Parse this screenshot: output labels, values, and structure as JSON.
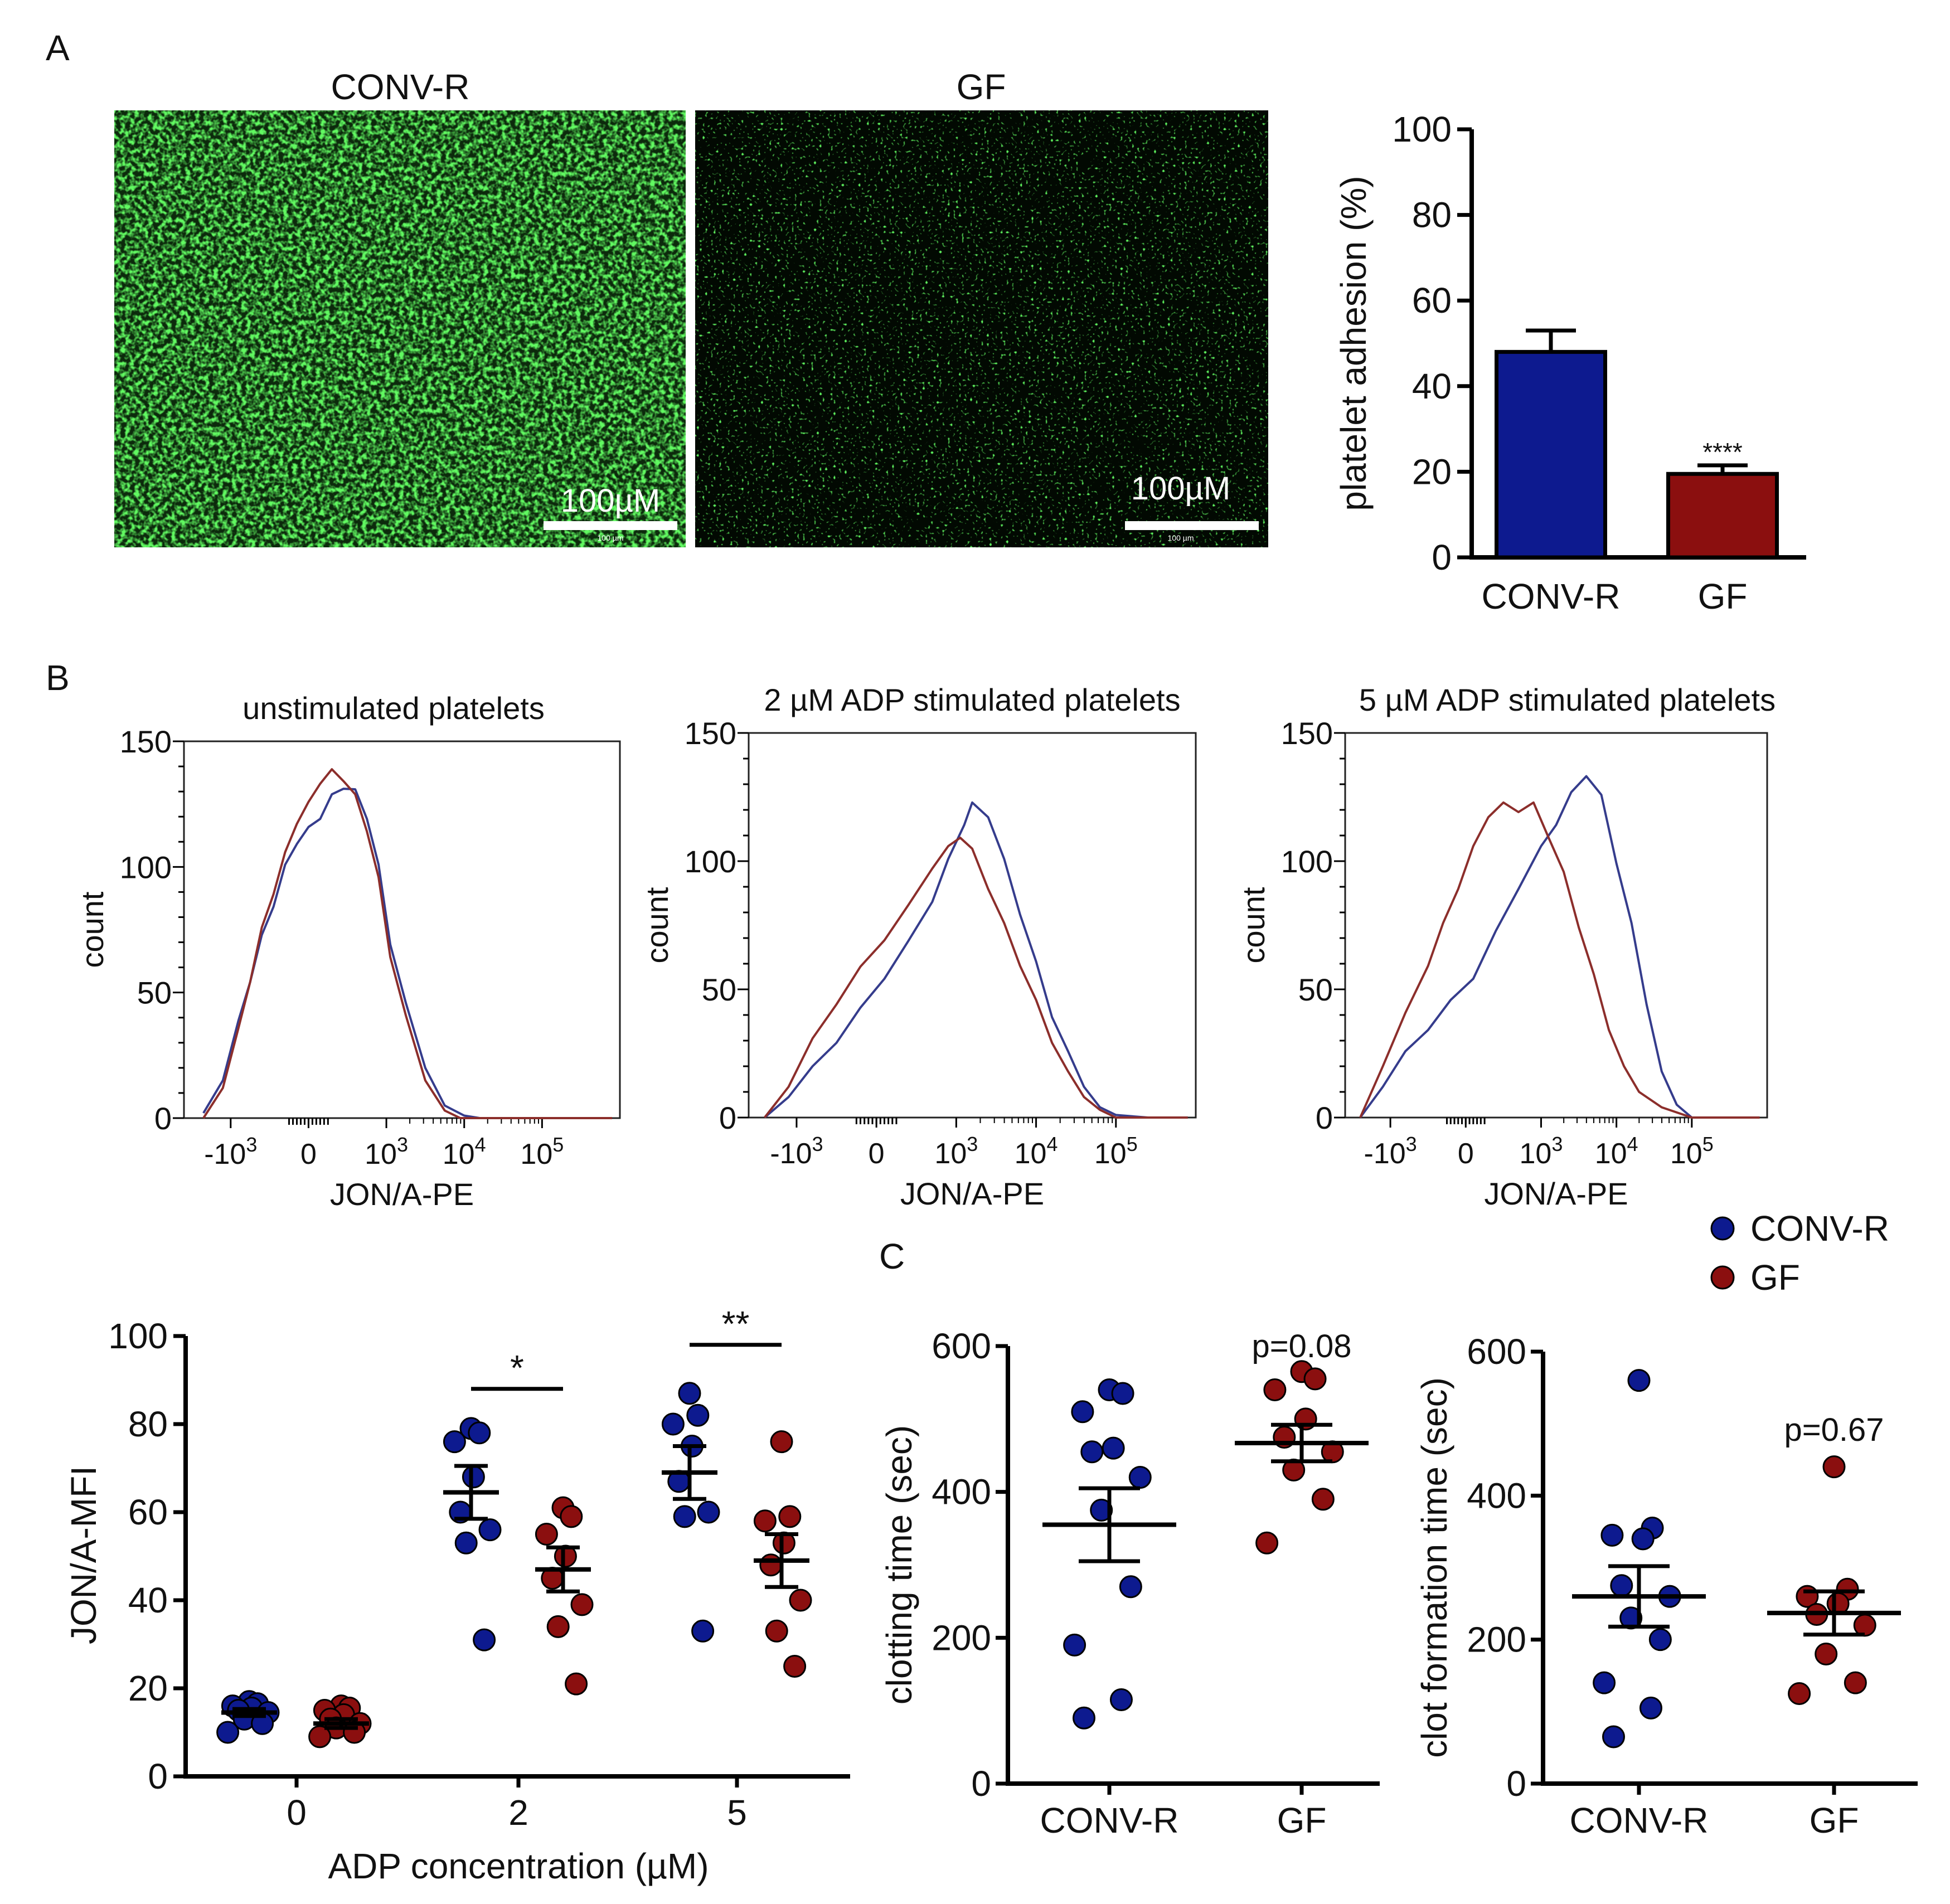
{
  "panel_labels": {
    "A": "A",
    "B": "B",
    "C": "C"
  },
  "micrographs": {
    "left": {
      "title": "CONV-R",
      "scale_label": "100µM",
      "scale_small": "100 µm"
    },
    "right": {
      "title": "GF",
      "scale_label": "100µM",
      "scale_small": "100 µm"
    }
  },
  "colors": {
    "conv": "#0d1a8f",
    "gf": "#8b0f0f",
    "conv_line": "#353c8c",
    "gf_line": "#8c2e2b",
    "micro_bg": "#061806",
    "micro_fg": "#2fd02f"
  },
  "legend": {
    "conv": "CONV-R",
    "gf": "GF"
  },
  "chart_data": [
    {
      "id": "adhesion",
      "type": "bar",
      "categories": [
        "CONV-R",
        "GF"
      ],
      "values": [
        48,
        19.5
      ],
      "errors": [
        5,
        2
      ],
      "significance": [
        "",
        "****"
      ],
      "ylabel": "platelet adhesion (%)",
      "ylim": [
        0,
        100
      ],
      "yticks": [
        "0",
        "20",
        "40",
        "60",
        "80",
        "100"
      ]
    },
    {
      "id": "hist_unstim",
      "type": "line",
      "title": "unstimulated platelets",
      "xlabel": "JON/A-PE",
      "ylabel": "count",
      "ylim": [
        0,
        150
      ],
      "yticks": [
        "0",
        "50",
        "100",
        "150"
      ],
      "xticks": [
        {
          "base": "-10",
          "exp": "3"
        },
        {
          "base": "0",
          "exp": ""
        },
        {
          "base": "10",
          "exp": "3"
        },
        {
          "base": "10",
          "exp": "4"
        },
        {
          "base": "10",
          "exp": "5"
        }
      ],
      "series": [
        {
          "name": "CONV-R",
          "x": [
            -1.35,
            -1.1,
            -0.9,
            -0.75,
            -0.6,
            -0.45,
            -0.3,
            -0.15,
            0.0,
            0.15,
            0.3,
            0.45,
            0.6,
            0.75,
            0.9,
            1.05,
            1.25,
            1.5,
            1.75,
            2.0,
            2.2,
            3.0,
            3.9
          ],
          "y": [
            2,
            15,
            38,
            55,
            72,
            85,
            100,
            110,
            115,
            120,
            128,
            132,
            130,
            120,
            100,
            70,
            45,
            20,
            5,
            1,
            0,
            0,
            0
          ]
        },
        {
          "name": "GF",
          "x": [
            -1.35,
            -1.1,
            -0.9,
            -0.75,
            -0.6,
            -0.45,
            -0.3,
            -0.15,
            0.0,
            0.15,
            0.3,
            0.45,
            0.6,
            0.75,
            0.9,
            1.05,
            1.25,
            1.5,
            1.75,
            1.95,
            2.2,
            3.0,
            3.9
          ],
          "y": [
            0,
            12,
            35,
            55,
            75,
            90,
            105,
            118,
            125,
            134,
            138,
            135,
            128,
            115,
            95,
            65,
            40,
            15,
            3,
            0,
            0,
            0,
            0
          ]
        }
      ]
    },
    {
      "id": "hist_2uM",
      "type": "line",
      "title": "2 µM ADP stimulated platelets",
      "xlabel": "JON/A-PE",
      "ylabel": "count",
      "ylim": [
        0,
        150
      ],
      "yticks": [
        "0",
        "50",
        "100",
        "150"
      ],
      "xticks": [
        {
          "base": "-10",
          "exp": "3"
        },
        {
          "base": "0",
          "exp": ""
        },
        {
          "base": "10",
          "exp": "3"
        },
        {
          "base": "10",
          "exp": "4"
        },
        {
          "base": "10",
          "exp": "5"
        }
      ],
      "series": [
        {
          "name": "CONV-R",
          "x": [
            -1.4,
            -1.1,
            -0.8,
            -0.5,
            -0.2,
            0.1,
            0.4,
            0.7,
            0.9,
            1.1,
            1.2,
            1.4,
            1.6,
            1.8,
            2.0,
            2.2,
            2.4,
            2.6,
            2.8,
            3.0,
            3.4,
            3.9
          ],
          "y": [
            0,
            8,
            20,
            30,
            42,
            55,
            68,
            85,
            100,
            115,
            122,
            118,
            100,
            80,
            60,
            40,
            25,
            12,
            4,
            1,
            0,
            0
          ]
        },
        {
          "name": "GF",
          "x": [
            -1.4,
            -1.1,
            -0.8,
            -0.5,
            -0.2,
            0.1,
            0.4,
            0.7,
            0.9,
            1.05,
            1.2,
            1.4,
            1.6,
            1.8,
            2.0,
            2.2,
            2.4,
            2.6,
            2.8,
            3.0,
            3.4,
            3.9
          ],
          "y": [
            0,
            12,
            30,
            45,
            58,
            70,
            82,
            98,
            105,
            110,
            104,
            90,
            75,
            60,
            45,
            30,
            18,
            8,
            3,
            0,
            0,
            0
          ]
        }
      ]
    },
    {
      "id": "hist_5uM",
      "type": "line",
      "title": "5 µM ADP stimulated platelets",
      "xlabel": "JON/A-PE",
      "ylabel": "count",
      "ylim": [
        0,
        150
      ],
      "yticks": [
        "0",
        "50",
        "100",
        "150"
      ],
      "xticks": [
        {
          "base": "-10",
          "exp": "3"
        },
        {
          "base": "0",
          "exp": ""
        },
        {
          "base": "10",
          "exp": "3"
        },
        {
          "base": "10",
          "exp": "4"
        },
        {
          "base": "10",
          "exp": "5"
        }
      ],
      "series": [
        {
          "name": "CONV-R",
          "x": [
            -1.4,
            -1.1,
            -0.8,
            -0.5,
            -0.2,
            0.1,
            0.4,
            0.7,
            1.0,
            1.2,
            1.4,
            1.6,
            1.8,
            2.0,
            2.2,
            2.4,
            2.6,
            2.8,
            3.0,
            3.3,
            3.9
          ],
          "y": [
            0,
            12,
            25,
            35,
            45,
            55,
            72,
            90,
            105,
            115,
            126,
            134,
            125,
            100,
            75,
            45,
            18,
            5,
            0,
            0,
            0
          ]
        },
        {
          "name": "GF",
          "x": [
            -1.4,
            -1.1,
            -0.8,
            -0.5,
            -0.3,
            -0.1,
            0.1,
            0.3,
            0.5,
            0.7,
            0.9,
            1.1,
            1.3,
            1.5,
            1.7,
            1.9,
            2.1,
            2.3,
            2.6,
            3.0,
            3.9
          ],
          "y": [
            0,
            20,
            40,
            60,
            75,
            90,
            105,
            118,
            122,
            120,
            122,
            110,
            95,
            75,
            55,
            35,
            20,
            10,
            4,
            0,
            0
          ]
        }
      ]
    },
    {
      "id": "mfi",
      "type": "scatter",
      "xlabel": "ADP concentration (µM)",
      "ylabel": "JON/A-MFI",
      "categories": [
        "0",
        "2",
        "5"
      ],
      "ylim": [
        0,
        100
      ],
      "yticks": [
        "0",
        "20",
        "40",
        "60",
        "80",
        "100"
      ],
      "series": [
        {
          "name": "CONV-R",
          "groups": [
            {
              "values": [
                17,
                16.5,
                16,
                15.5,
                15,
                14.5,
                13,
                12,
                10
              ],
              "mean": 14.5,
              "sem": 0.8
            },
            {
              "values": [
                79,
                78,
                76,
                68,
                60,
                56,
                53,
                31
              ],
              "mean": 64.5,
              "sem": 6
            },
            {
              "values": [
                87,
                82,
                80,
                75,
                67,
                60,
                59,
                33
              ],
              "mean": 69,
              "sem": 6
            }
          ]
        },
        {
          "name": "GF",
          "groups": [
            {
              "values": [
                16,
                15.5,
                15,
                14,
                13,
                12,
                11,
                10,
                9
              ],
              "mean": 12,
              "sem": 1
            },
            {
              "values": [
                61,
                59,
                55,
                50,
                45,
                39,
                34,
                21
              ],
              "mean": 47,
              "sem": 5
            },
            {
              "values": [
                76,
                59,
                58,
                53,
                48,
                40,
                33,
                25
              ],
              "mean": 49,
              "sem": 6
            }
          ]
        }
      ],
      "significance": [
        {
          "between": "2",
          "label": "*",
          "y": 88
        },
        {
          "between": "5",
          "label": "**",
          "y": 98
        }
      ]
    },
    {
      "id": "clotting",
      "type": "scatter",
      "ylabel": "clotting time (sec)",
      "categories": [
        "CONV-R",
        "GF"
      ],
      "ylim": [
        0,
        600
      ],
      "yticks": [
        "0",
        "200",
        "400",
        "600"
      ],
      "annotation": "p=0.08",
      "series": [
        {
          "name": "CONV-R",
          "values": [
            540,
            535,
            510,
            460,
            455,
            420,
            375,
            270,
            190,
            115,
            90
          ],
          "mean": 355,
          "sem": 50
        },
        {
          "name": "GF",
          "values": [
            565,
            555,
            540,
            500,
            475,
            455,
            430,
            390,
            330
          ],
          "mean": 467,
          "sem": 25
        }
      ]
    },
    {
      "id": "clot_formation",
      "type": "scatter",
      "ylabel": "clot formation time (sec)",
      "categories": [
        "CONV-R",
        "GF"
      ],
      "ylim": [
        0,
        600
      ],
      "yticks": [
        "0",
        "200",
        "400",
        "600"
      ],
      "annotation": "p=0.67",
      "series": [
        {
          "name": "CONV-R",
          "values": [
            560,
            355,
            345,
            340,
            275,
            260,
            230,
            200,
            140,
            105,
            65
          ],
          "mean": 260,
          "sem": 42
        },
        {
          "name": "GF",
          "values": [
            440,
            270,
            260,
            250,
            235,
            220,
            180,
            140,
            125
          ],
          "mean": 237,
          "sem": 30
        }
      ]
    }
  ]
}
